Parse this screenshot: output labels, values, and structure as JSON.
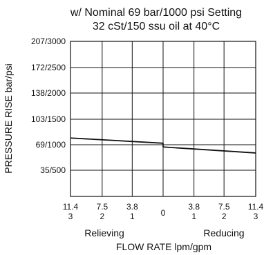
{
  "chart_data": {
    "type": "line",
    "title": "w/ Nominal 69 bar/1000 psi Setting",
    "subtitle": "32 cSt/150 ssu oil at 40°C",
    "ylabel": "PRESSURE RISE bar/psi",
    "xlabel": "FLOW RATE lpm/gpm",
    "x_region_labels": {
      "left": "Relieving",
      "right": "Reducing"
    },
    "ylim": [
      0,
      207
    ],
    "xlim": [
      -11.4,
      11.4
    ],
    "y_ticks": [
      {
        "value": 35,
        "label": "35/500"
      },
      {
        "value": 69,
        "label": "69/1000"
      },
      {
        "value": 103,
        "label": "103/1500"
      },
      {
        "value": 138,
        "label": "138/2000"
      },
      {
        "value": 172,
        "label": "172/2500"
      },
      {
        "value": 207,
        "label": "207/3000"
      }
    ],
    "x_ticks": [
      {
        "value": -11.4,
        "lpm": "11.4",
        "gpm": "3"
      },
      {
        "value": -7.5,
        "lpm": "7.5",
        "gpm": "2"
      },
      {
        "value": -3.8,
        "lpm": "3.8",
        "gpm": "1"
      },
      {
        "value": 0,
        "lpm": "0",
        "gpm": ""
      },
      {
        "value": 3.8,
        "lpm": "3.8",
        "gpm": "1"
      },
      {
        "value": 7.5,
        "lpm": "7.5",
        "gpm": "2"
      },
      {
        "value": 11.4,
        "lpm": "11.4",
        "gpm": "3"
      }
    ],
    "grid": true,
    "series": [
      {
        "segment": "relieving",
        "x": [
          -11.4,
          0
        ],
        "y": [
          78,
          71
        ]
      },
      {
        "segment": "reducing",
        "x": [
          0,
          11.4
        ],
        "y": [
          66,
          58
        ]
      }
    ]
  }
}
